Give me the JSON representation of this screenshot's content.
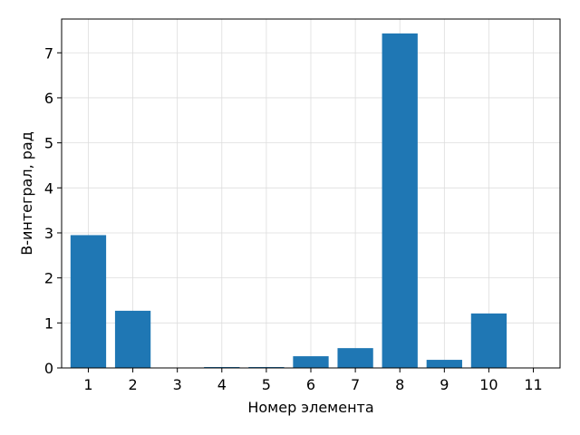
{
  "chart_data": {
    "type": "bar",
    "title": "",
    "xlabel": "Номер элемента",
    "ylabel": "B-интеграл, рад",
    "categories": [
      "1",
      "2",
      "3",
      "4",
      "5",
      "6",
      "7",
      "8",
      "9",
      "10",
      "11"
    ],
    "values": [
      2.95,
      1.27,
      0.0,
      0.02,
      0.02,
      0.26,
      0.44,
      7.43,
      0.18,
      1.21,
      0.0
    ],
    "ylim": [
      0,
      7.75
    ],
    "yticks": [
      0,
      1,
      2,
      3,
      4,
      5,
      6,
      7
    ],
    "grid": true,
    "bar_color": "#1f77b4",
    "grid_color": "#dddddd"
  }
}
